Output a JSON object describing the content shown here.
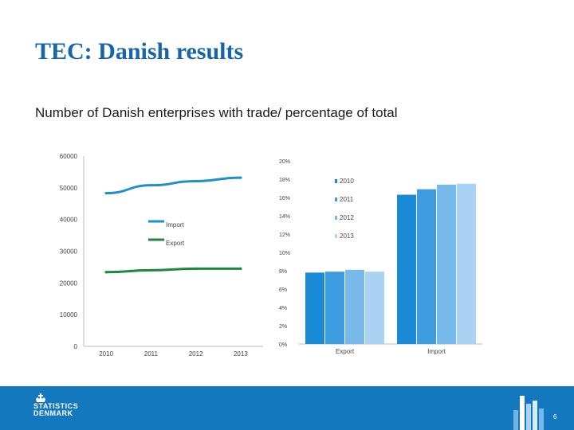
{
  "title": "TEC: Danish results",
  "subtitle": "Number of Danish enterprises with trade/ percentage of total",
  "footer": {
    "logo_line1": "STATISTICS",
    "logo_line2": "DENMARK",
    "page_number": "6"
  },
  "colors": {
    "accent": "#1478be",
    "title": "#1565a8",
    "import_line": "#1e8fc8",
    "export_line": "#1a8a3c"
  },
  "chart_data": [
    {
      "type": "line",
      "x": [
        "2010",
        "2011",
        "2012",
        "2013"
      ],
      "yticks": [
        "60000",
        "50000",
        "40000",
        "30000",
        "20000",
        "10000",
        "0"
      ],
      "ylim": [
        0,
        60000
      ],
      "series": [
        {
          "name": "Import",
          "values": [
            48300,
            50800,
            52100,
            53200
          ],
          "color": "#1e8fc8"
        },
        {
          "name": "Export",
          "values": [
            23400,
            24000,
            24500,
            24500
          ],
          "color": "#1a8a3c"
        }
      ]
    },
    {
      "type": "bar",
      "categories": [
        "Export",
        "Import"
      ],
      "yticks": [
        "20%",
        "18%",
        "16%",
        "14%",
        "12%",
        "10%",
        "8%",
        "6%",
        "4%",
        "2%",
        "0%"
      ],
      "ylim": [
        0,
        20
      ],
      "legend_position": "top-right",
      "series": [
        {
          "name": "2010",
          "values": [
            7.8,
            16.3
          ],
          "color": "#1b8ad6"
        },
        {
          "name": "2011",
          "values": [
            7.9,
            16.9
          ],
          "color": "#3d9de0"
        },
        {
          "name": "2012",
          "values": [
            8.1,
            17.4
          ],
          "color": "#76b9ea"
        },
        {
          "name": "2013",
          "values": [
            7.9,
            17.5
          ],
          "color": "#a9d2f3"
        }
      ]
    }
  ]
}
